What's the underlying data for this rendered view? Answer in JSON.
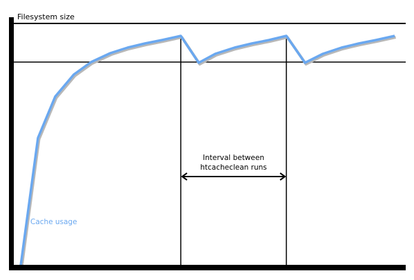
{
  "labels": {
    "y_axis": "Filesystem size",
    "interval_line1": "Interval between",
    "interval_line2": "htcacheclean runs",
    "series": "Cache usage"
  },
  "colors": {
    "curve": "#6aa8f0",
    "axes": "#000000",
    "shadow": "#b0b0b0"
  }
}
